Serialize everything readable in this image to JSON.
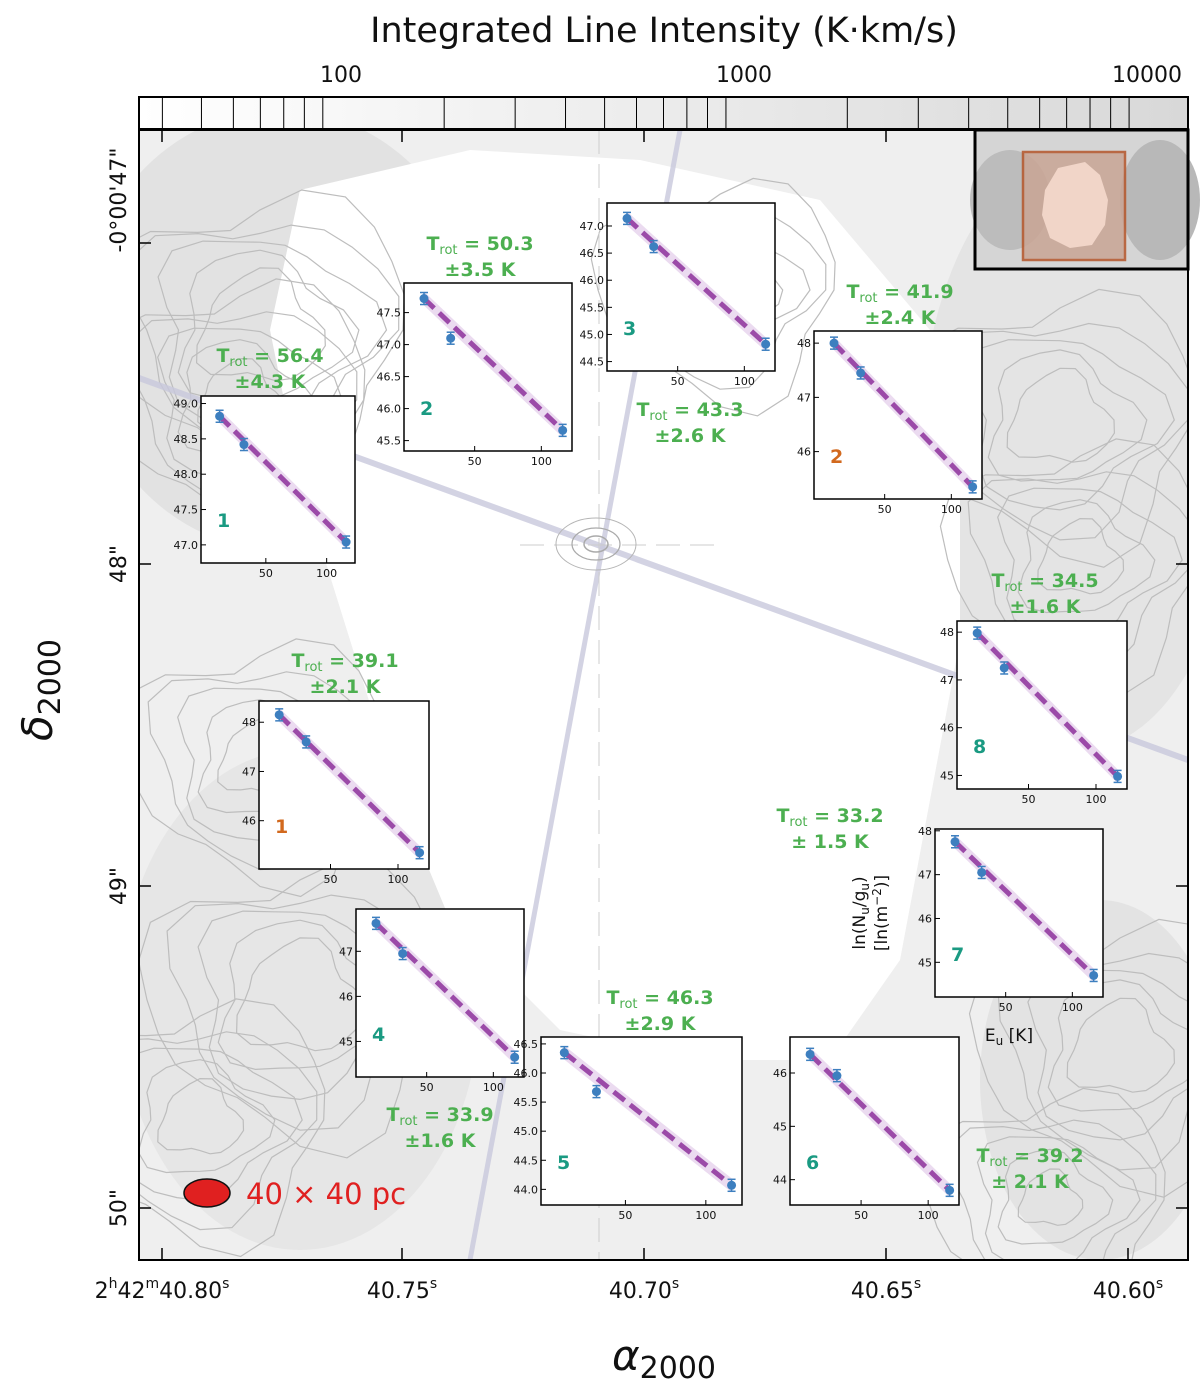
{
  "colorbar": {
    "title": "Integrated Line Intensity (K·km/s)",
    "scale": "log",
    "range": [
      35,
      14000
    ],
    "tick_labels": [
      "100",
      "1000",
      "10000"
    ]
  },
  "axes": {
    "xlabel": "α",
    "xlabel_sub": "2000",
    "ylabel": "δ",
    "ylabel_sub": "2000",
    "x_ticks": [
      {
        "main": "2",
        "sup1": "h",
        "mid": "42",
        "sup2": "m",
        "rest": "40.80",
        "sup3": "s"
      },
      {
        "main": "",
        "sup1": "",
        "mid": "",
        "sup2": "",
        "rest": "40.75",
        "sup3": "s"
      },
      {
        "main": "",
        "sup1": "",
        "mid": "",
        "sup2": "",
        "rest": "40.70",
        "sup3": "s"
      },
      {
        "main": "",
        "sup1": "",
        "mid": "",
        "sup2": "",
        "rest": "40.65",
        "sup3": "s"
      },
      {
        "main": "",
        "sup1": "",
        "mid": "",
        "sup2": "",
        "rest": "40.60",
        "sup3": "s"
      }
    ],
    "y_ticks": [
      "-0°00'47\"",
      "48\"",
      "49\"",
      "50\""
    ]
  },
  "beam_label": "40 × 40 pc",
  "colors": {
    "trot_text": "#4caf50",
    "num_teal": "#1a9a82",
    "num_orange": "#d2691e",
    "fit_line": "#9b4aa8",
    "fit_band": "#e6d2ec",
    "points": "#3d7fbf",
    "beam": "#e02020",
    "inset_box": "#b5562a"
  },
  "chart_data": {
    "type": "scatter",
    "x_axis": "E_u [K]",
    "y_axis": "ln(N_u/g_u) [ln(m^-2)]",
    "insets": [
      {
        "id": "1 teal",
        "label": "1",
        "label_color": "teal",
        "trot_value": "56.4",
        "trot_err": "±4.3 K",
        "E_u": [
          12,
          32,
          116
        ],
        "y": [
          48.82,
          48.42,
          47.04
        ],
        "ylim": [
          46.8,
          49.05
        ],
        "yticks": [
          "49.0",
          "48.5",
          "48.0",
          "47.5",
          "47.0"
        ],
        "ytick_values": [
          49.0,
          48.5,
          48.0,
          47.5,
          47.0
        ],
        "xticks": [
          "50",
          "100"
        ]
      },
      {
        "id": "2 teal",
        "label": "2",
        "label_color": "teal",
        "trot_value": "50.3",
        "trot_err": "±3.5 K",
        "E_u": [
          12,
          32,
          116
        ],
        "y": [
          47.72,
          47.1,
          45.66
        ],
        "ylim": [
          45.4,
          47.9
        ],
        "yticks": [
          "47.5",
          "47.0",
          "46.5",
          "46.0",
          "45.5"
        ],
        "ytick_values": [
          47.5,
          47.0,
          46.5,
          46.0,
          45.5
        ],
        "xticks": [
          "50",
          "100"
        ]
      },
      {
        "id": "3 teal",
        "label": "3",
        "label_color": "teal",
        "trot_value": "43.3",
        "trot_err": "±2.6 K",
        "E_u": [
          12,
          32,
          116
        ],
        "y": [
          47.14,
          46.62,
          44.82
        ],
        "ylim": [
          44.4,
          47.35
        ],
        "yticks": [
          "47.0",
          "46.5",
          "46.0",
          "45.5",
          "45.0",
          "44.5"
        ],
        "ytick_values": [
          47.0,
          46.5,
          46.0,
          45.5,
          45.0,
          44.5
        ],
        "xticks": [
          "50",
          "100"
        ]
      },
      {
        "id": "2 orange",
        "label": "2",
        "label_color": "orange",
        "trot_value": "41.9",
        "trot_err": "±2.4 K",
        "E_u": [
          12,
          32,
          116
        ],
        "y": [
          48.0,
          47.45,
          45.35
        ],
        "ylim": [
          45.2,
          48.15
        ],
        "yticks": [
          "48",
          "47",
          "46"
        ],
        "ytick_values": [
          48,
          47,
          46
        ],
        "xticks": [
          "50",
          "100"
        ]
      },
      {
        "id": "8 teal",
        "label": "8",
        "label_color": "teal",
        "trot_value": "34.5",
        "trot_err": "±1.6 K",
        "E_u": [
          12,
          32,
          116
        ],
        "y": [
          47.98,
          47.25,
          44.98
        ],
        "ylim": [
          44.8,
          48.15
        ],
        "yticks": [
          "48",
          "47",
          "46",
          "45"
        ],
        "ytick_values": [
          48,
          47,
          46,
          45
        ],
        "xticks": [
          "50",
          "100"
        ]
      },
      {
        "id": "1 orange",
        "label": "1",
        "label_color": "orange",
        "trot_value": "39.1",
        "trot_err": "±2.1 K",
        "E_u": [
          12,
          32,
          116
        ],
        "y": [
          48.15,
          47.6,
          45.35
        ],
        "ylim": [
          45.1,
          48.35
        ],
        "yticks": [
          "48",
          "47",
          "46"
        ],
        "ytick_values": [
          48,
          47,
          46
        ],
        "xticks": [
          "50",
          "100"
        ]
      },
      {
        "id": "7 teal",
        "label": "7",
        "label_color": "teal",
        "trot_value": "33.2",
        "trot_err": "± 1.5 K",
        "E_u": [
          12,
          32,
          116
        ],
        "y": [
          47.75,
          47.05,
          44.7
        ],
        "ylim": [
          44.3,
          47.95
        ],
        "yticks": [
          "48",
          "47",
          "46",
          "45"
        ],
        "ytick_values": [
          48,
          47,
          46,
          45
        ],
        "xticks": [
          "50",
          "100"
        ],
        "ylabel_line1": "ln(N",
        "ylabel_sub1": "u",
        "ylabel_mid": "/g",
        "ylabel_sub2": "u",
        "ylabel_end": ")",
        "ylabel_line2": "[ln(m",
        "ylabel_sup": "−2",
        "ylabel_line2_end": ")]",
        "xlabel": "E",
        "xlabel_sub": "u",
        "xlabel_end": " [K]"
      },
      {
        "id": "4 teal",
        "label": "4",
        "label_color": "teal",
        "trot_value": "33.9",
        "trot_err": "±1.6 K",
        "E_u": [
          12,
          32,
          116
        ],
        "y": [
          47.62,
          46.95,
          44.65
        ],
        "ylim": [
          44.3,
          47.85
        ],
        "yticks": [
          "47",
          "46",
          "45"
        ],
        "ytick_values": [
          47,
          46,
          45
        ],
        "xticks": [
          "50",
          "100"
        ]
      },
      {
        "id": "5 teal",
        "label": "5",
        "label_color": "teal",
        "trot_value": "46.3",
        "trot_err": "±2.9 K",
        "E_u": [
          12,
          32,
          116
        ],
        "y": [
          46.35,
          45.68,
          44.07
        ],
        "ylim": [
          43.8,
          46.55
        ],
        "yticks": [
          "46.5",
          "46.0",
          "45.5",
          "45.0",
          "44.5",
          "44.0"
        ],
        "ytick_values": [
          46.5,
          46.0,
          45.5,
          45.0,
          44.5,
          44.0
        ],
        "xticks": [
          "50",
          "100"
        ]
      },
      {
        "id": "6 teal",
        "label": "6",
        "label_color": "teal",
        "trot_value": "39.2",
        "trot_err": "± 2.1 K",
        "E_u": [
          12,
          32,
          116
        ],
        "y": [
          46.35,
          45.95,
          43.8
        ],
        "ylim": [
          43.6,
          46.6
        ],
        "yticks": [
          "46",
          "45",
          "44"
        ],
        "ytick_values": [
          46,
          45,
          44
        ],
        "xticks": [
          "50",
          "100"
        ]
      }
    ],
    "xlim": [
      0,
      120
    ],
    "trot_prefix": "T",
    "trot_sub": "rot"
  }
}
